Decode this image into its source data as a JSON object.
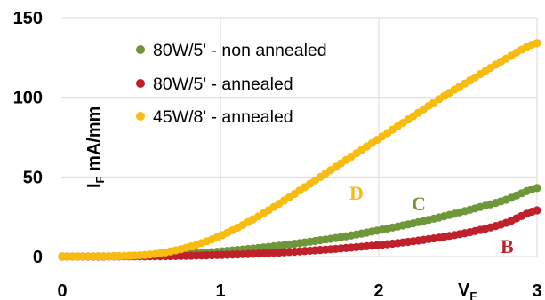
{
  "chart_data": {
    "type": "scatter",
    "x_range": [
      0,
      3
    ],
    "y_range": [
      0,
      150
    ],
    "x_ticks": [
      0,
      1,
      2,
      3
    ],
    "y_ticks": [
      0,
      50,
      100,
      150
    ],
    "x_tick_labels": [
      "0",
      "1",
      "2",
      "3"
    ],
    "y_tick_labels": [
      "0",
      "50",
      "100",
      "150"
    ],
    "grid": true,
    "xlabel": {
      "main": "V",
      "sub": "F"
    },
    "ylabel": {
      "main": "I",
      "sub": "F",
      "rest": " mA/mm"
    },
    "legend_position": "top-left",
    "series": [
      {
        "name": "80W/5' - non annealed",
        "curve_label": "C",
        "color": "#70963a",
        "label_color": "#70963a",
        "points": [
          [
            0.0,
            0.0
          ],
          [
            0.2,
            0.1
          ],
          [
            0.4,
            0.3
          ],
          [
            0.6,
            0.8
          ],
          [
            0.8,
            1.8
          ],
          [
            1.0,
            3.2
          ],
          [
            1.2,
            5.0
          ],
          [
            1.4,
            7.2
          ],
          [
            1.6,
            9.8
          ],
          [
            1.8,
            12.8
          ],
          [
            2.0,
            16.5
          ],
          [
            2.2,
            20.5
          ],
          [
            2.4,
            25.0
          ],
          [
            2.6,
            30.0
          ],
          [
            2.8,
            35.5
          ],
          [
            3.0,
            43.0
          ]
        ]
      },
      {
        "name": "80W/5' - annealed",
        "curve_label": "B",
        "color": "#c0202a",
        "label_color": "#c0202a",
        "points": [
          [
            0.0,
            0.0
          ],
          [
            0.2,
            0.0
          ],
          [
            0.4,
            0.1
          ],
          [
            0.6,
            0.2
          ],
          [
            0.8,
            0.5
          ],
          [
            1.0,
            1.0
          ],
          [
            1.2,
            1.7
          ],
          [
            1.4,
            2.7
          ],
          [
            1.6,
            3.9
          ],
          [
            1.8,
            5.4
          ],
          [
            2.0,
            7.2
          ],
          [
            2.2,
            9.4
          ],
          [
            2.4,
            12.2
          ],
          [
            2.6,
            15.8
          ],
          [
            2.8,
            21.0
          ],
          [
            3.0,
            29.0
          ]
        ]
      },
      {
        "name": "45W/8' - annealed",
        "curve_label": "D",
        "color": "#f8bc10",
        "label_color": "#f8bc10",
        "points": [
          [
            0.0,
            0.0
          ],
          [
            0.2,
            0.1
          ],
          [
            0.4,
            0.4
          ],
          [
            0.6,
            1.8
          ],
          [
            0.8,
            6.0
          ],
          [
            1.0,
            13.0
          ],
          [
            1.2,
            23.0
          ],
          [
            1.4,
            35.0
          ],
          [
            1.6,
            48.0
          ],
          [
            1.8,
            61.0
          ],
          [
            2.0,
            74.0
          ],
          [
            2.2,
            87.0
          ],
          [
            2.4,
            100.0
          ],
          [
            2.6,
            112.0
          ],
          [
            2.8,
            124.0
          ],
          [
            3.0,
            134.0
          ]
        ]
      }
    ]
  }
}
